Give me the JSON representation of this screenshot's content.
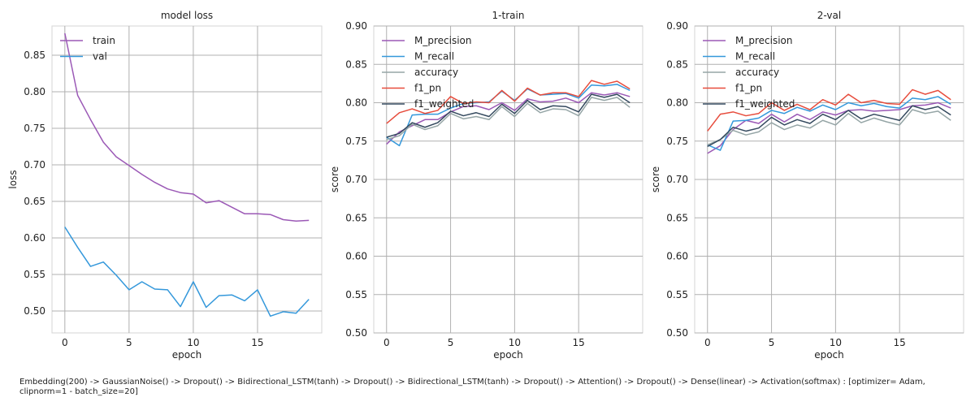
{
  "chart_data": [
    {
      "type": "line",
      "title": "model loss",
      "xlabel": "epoch",
      "ylabel": "loss",
      "xlim": [
        -1,
        20
      ],
      "ylim": [
        0.47,
        0.89
      ],
      "xticks": [
        0,
        5,
        10,
        15
      ],
      "yticks": [
        0.5,
        0.55,
        0.6,
        0.65,
        0.7,
        0.75,
        0.8,
        0.85
      ],
      "grid": true,
      "legend": "top-left",
      "x": [
        0,
        1,
        2,
        3,
        4,
        5,
        6,
        7,
        8,
        9,
        10,
        11,
        12,
        13,
        14,
        15,
        16,
        17,
        18,
        19
      ],
      "series": [
        {
          "name": "train",
          "color": "#9b59b6",
          "values": [
            0.88,
            0.795,
            0.762,
            0.731,
            0.711,
            0.699,
            0.687,
            0.676,
            0.667,
            0.662,
            0.66,
            0.648,
            0.651,
            0.642,
            0.633,
            0.633,
            0.632,
            0.625,
            0.623,
            0.624
          ]
        },
        {
          "name": "val",
          "color": "#3498db",
          "values": [
            0.615,
            0.587,
            0.561,
            0.567,
            0.549,
            0.529,
            0.54,
            0.53,
            0.529,
            0.506,
            0.54,
            0.505,
            0.521,
            0.522,
            0.514,
            0.529,
            0.493,
            0.499,
            0.497,
            0.516
          ]
        }
      ]
    },
    {
      "type": "line",
      "title": "1-train",
      "xlabel": "epoch",
      "ylabel": "score",
      "xlim": [
        -1,
        20
      ],
      "ylim": [
        0.5,
        0.9
      ],
      "xticks": [
        0,
        5,
        10,
        15
      ],
      "yticks": [
        0.5,
        0.55,
        0.6,
        0.65,
        0.7,
        0.75,
        0.8,
        0.85,
        0.9
      ],
      "grid": true,
      "legend": "top-left",
      "x": [
        0,
        1,
        2,
        3,
        4,
        5,
        6,
        7,
        8,
        9,
        10,
        11,
        12,
        13,
        14,
        15,
        16,
        17,
        18,
        19
      ],
      "series": [
        {
          "name": "M_precision",
          "color": "#9b59b6",
          "values": [
            0.746,
            0.762,
            0.77,
            0.778,
            0.778,
            0.788,
            0.795,
            0.796,
            0.791,
            0.8,
            0.79,
            0.805,
            0.801,
            0.802,
            0.806,
            0.8,
            0.813,
            0.81,
            0.813,
            0.808
          ]
        },
        {
          "name": "M_recall",
          "color": "#3498db",
          "values": [
            0.755,
            0.744,
            0.784,
            0.785,
            0.785,
            0.793,
            0.799,
            0.8,
            0.801,
            0.815,
            0.803,
            0.818,
            0.81,
            0.811,
            0.812,
            0.806,
            0.823,
            0.822,
            0.824,
            0.816
          ]
        },
        {
          "name": "accuracy",
          "color": "#95a5a6",
          "values": [
            0.752,
            0.757,
            0.772,
            0.765,
            0.77,
            0.786,
            0.779,
            0.782,
            0.778,
            0.795,
            0.782,
            0.799,
            0.787,
            0.792,
            0.791,
            0.783,
            0.807,
            0.803,
            0.807,
            0.794
          ]
        },
        {
          "name": "f1_pn",
          "color": "#e74c3c",
          "values": [
            0.773,
            0.787,
            0.792,
            0.786,
            0.79,
            0.808,
            0.799,
            0.801,
            0.8,
            0.816,
            0.802,
            0.819,
            0.81,
            0.813,
            0.813,
            0.808,
            0.829,
            0.824,
            0.828,
            0.818
          ]
        },
        {
          "name": "f1_weighted",
          "color": "#34495e",
          "values": [
            0.755,
            0.76,
            0.774,
            0.768,
            0.774,
            0.789,
            0.783,
            0.787,
            0.782,
            0.798,
            0.786,
            0.803,
            0.791,
            0.796,
            0.795,
            0.788,
            0.811,
            0.807,
            0.811,
            0.8
          ]
        }
      ]
    },
    {
      "type": "line",
      "title": "2-val",
      "xlabel": "epoch",
      "ylabel": "score",
      "xlim": [
        -1,
        20
      ],
      "ylim": [
        0.5,
        0.9
      ],
      "xticks": [
        0,
        5,
        10,
        15
      ],
      "yticks": [
        0.5,
        0.55,
        0.6,
        0.65,
        0.7,
        0.75,
        0.8,
        0.85,
        0.9
      ],
      "grid": true,
      "legend": "top-left",
      "x": [
        0,
        1,
        2,
        3,
        4,
        5,
        6,
        7,
        8,
        9,
        10,
        11,
        12,
        13,
        14,
        15,
        16,
        17,
        18,
        19
      ],
      "series": [
        {
          "name": "M_precision",
          "color": "#9b59b6",
          "values": [
            0.734,
            0.744,
            0.765,
            0.777,
            0.773,
            0.785,
            0.775,
            0.785,
            0.778,
            0.788,
            0.784,
            0.79,
            0.791,
            0.789,
            0.79,
            0.791,
            0.796,
            0.797,
            0.8,
            0.793
          ]
        },
        {
          "name": "M_recall",
          "color": "#3498db",
          "values": [
            0.745,
            0.738,
            0.776,
            0.777,
            0.78,
            0.79,
            0.786,
            0.794,
            0.789,
            0.797,
            0.791,
            0.8,
            0.796,
            0.799,
            0.795,
            0.793,
            0.806,
            0.804,
            0.808,
            0.798
          ]
        },
        {
          "name": "accuracy",
          "color": "#95a5a6",
          "values": [
            0.745,
            0.752,
            0.764,
            0.758,
            0.762,
            0.774,
            0.765,
            0.771,
            0.767,
            0.777,
            0.771,
            0.786,
            0.774,
            0.78,
            0.775,
            0.771,
            0.791,
            0.786,
            0.789,
            0.777
          ]
        },
        {
          "name": "f1_pn",
          "color": "#e74c3c",
          "values": [
            0.763,
            0.785,
            0.788,
            0.783,
            0.786,
            0.8,
            0.79,
            0.798,
            0.791,
            0.804,
            0.797,
            0.811,
            0.8,
            0.803,
            0.799,
            0.798,
            0.817,
            0.811,
            0.816,
            0.804
          ]
        },
        {
          "name": "f1_weighted",
          "color": "#34495e",
          "values": [
            0.743,
            0.752,
            0.768,
            0.763,
            0.767,
            0.781,
            0.771,
            0.778,
            0.773,
            0.785,
            0.778,
            0.79,
            0.779,
            0.785,
            0.781,
            0.777,
            0.796,
            0.791,
            0.795,
            0.784
          ]
        }
      ]
    }
  ],
  "caption": "Embedding(200) -> GaussianNoise() -> Dropout() -> Bidirectional_LSTM(tanh) -> Dropout() -> Bidirectional_LSTM(tanh) -> Dropout() -> Attention() -> Dropout() -> Dense(linear) -> Activation(softmax) : [optimizer= Adam, clipnorm=1 - batch_size=20]"
}
